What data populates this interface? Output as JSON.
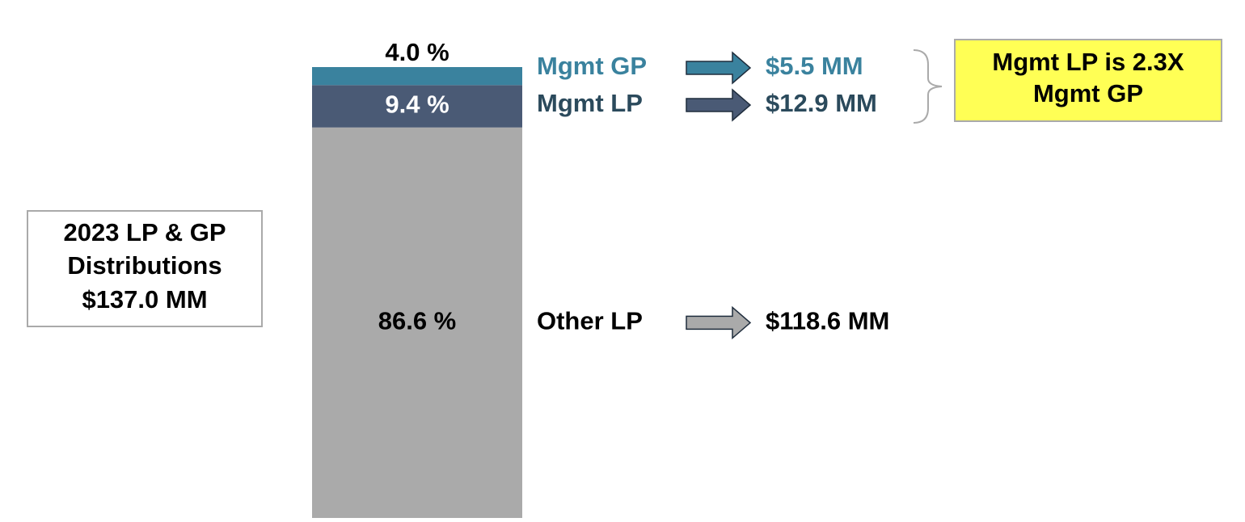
{
  "chart_data": {
    "type": "bar",
    "stacked": true,
    "series": [
      {
        "name": "Other LP",
        "color": "#aaaaaa",
        "text_color": "#000000",
        "value_label_color": "#000000",
        "values": [
          86.6
        ],
        "value_labels": [
          "86.6 %"
        ],
        "amount": "$118.6 MM"
      },
      {
        "name": "Mgmt LP",
        "color": "#4a5a75",
        "text_color": "#2b4a5c",
        "value_label_color": "#ffffff",
        "values": [
          9.4
        ],
        "value_labels": [
          "9.4 %"
        ],
        "amount": "$12.9 MM"
      },
      {
        "name": "Mgmt GP",
        "color": "#3a829e",
        "text_color": "#3a829e",
        "value_label_color": "#000000",
        "values": [
          4.0
        ],
        "value_labels": [
          "4.0 %"
        ],
        "amount": "$5.5 MM"
      }
    ],
    "total_label": [
      "2023 LP & GP",
      "Distributions",
      "$137.0 MM"
    ],
    "callout": [
      "Mgmt LP is 2.3X",
      "Mgmt GP"
    ]
  }
}
